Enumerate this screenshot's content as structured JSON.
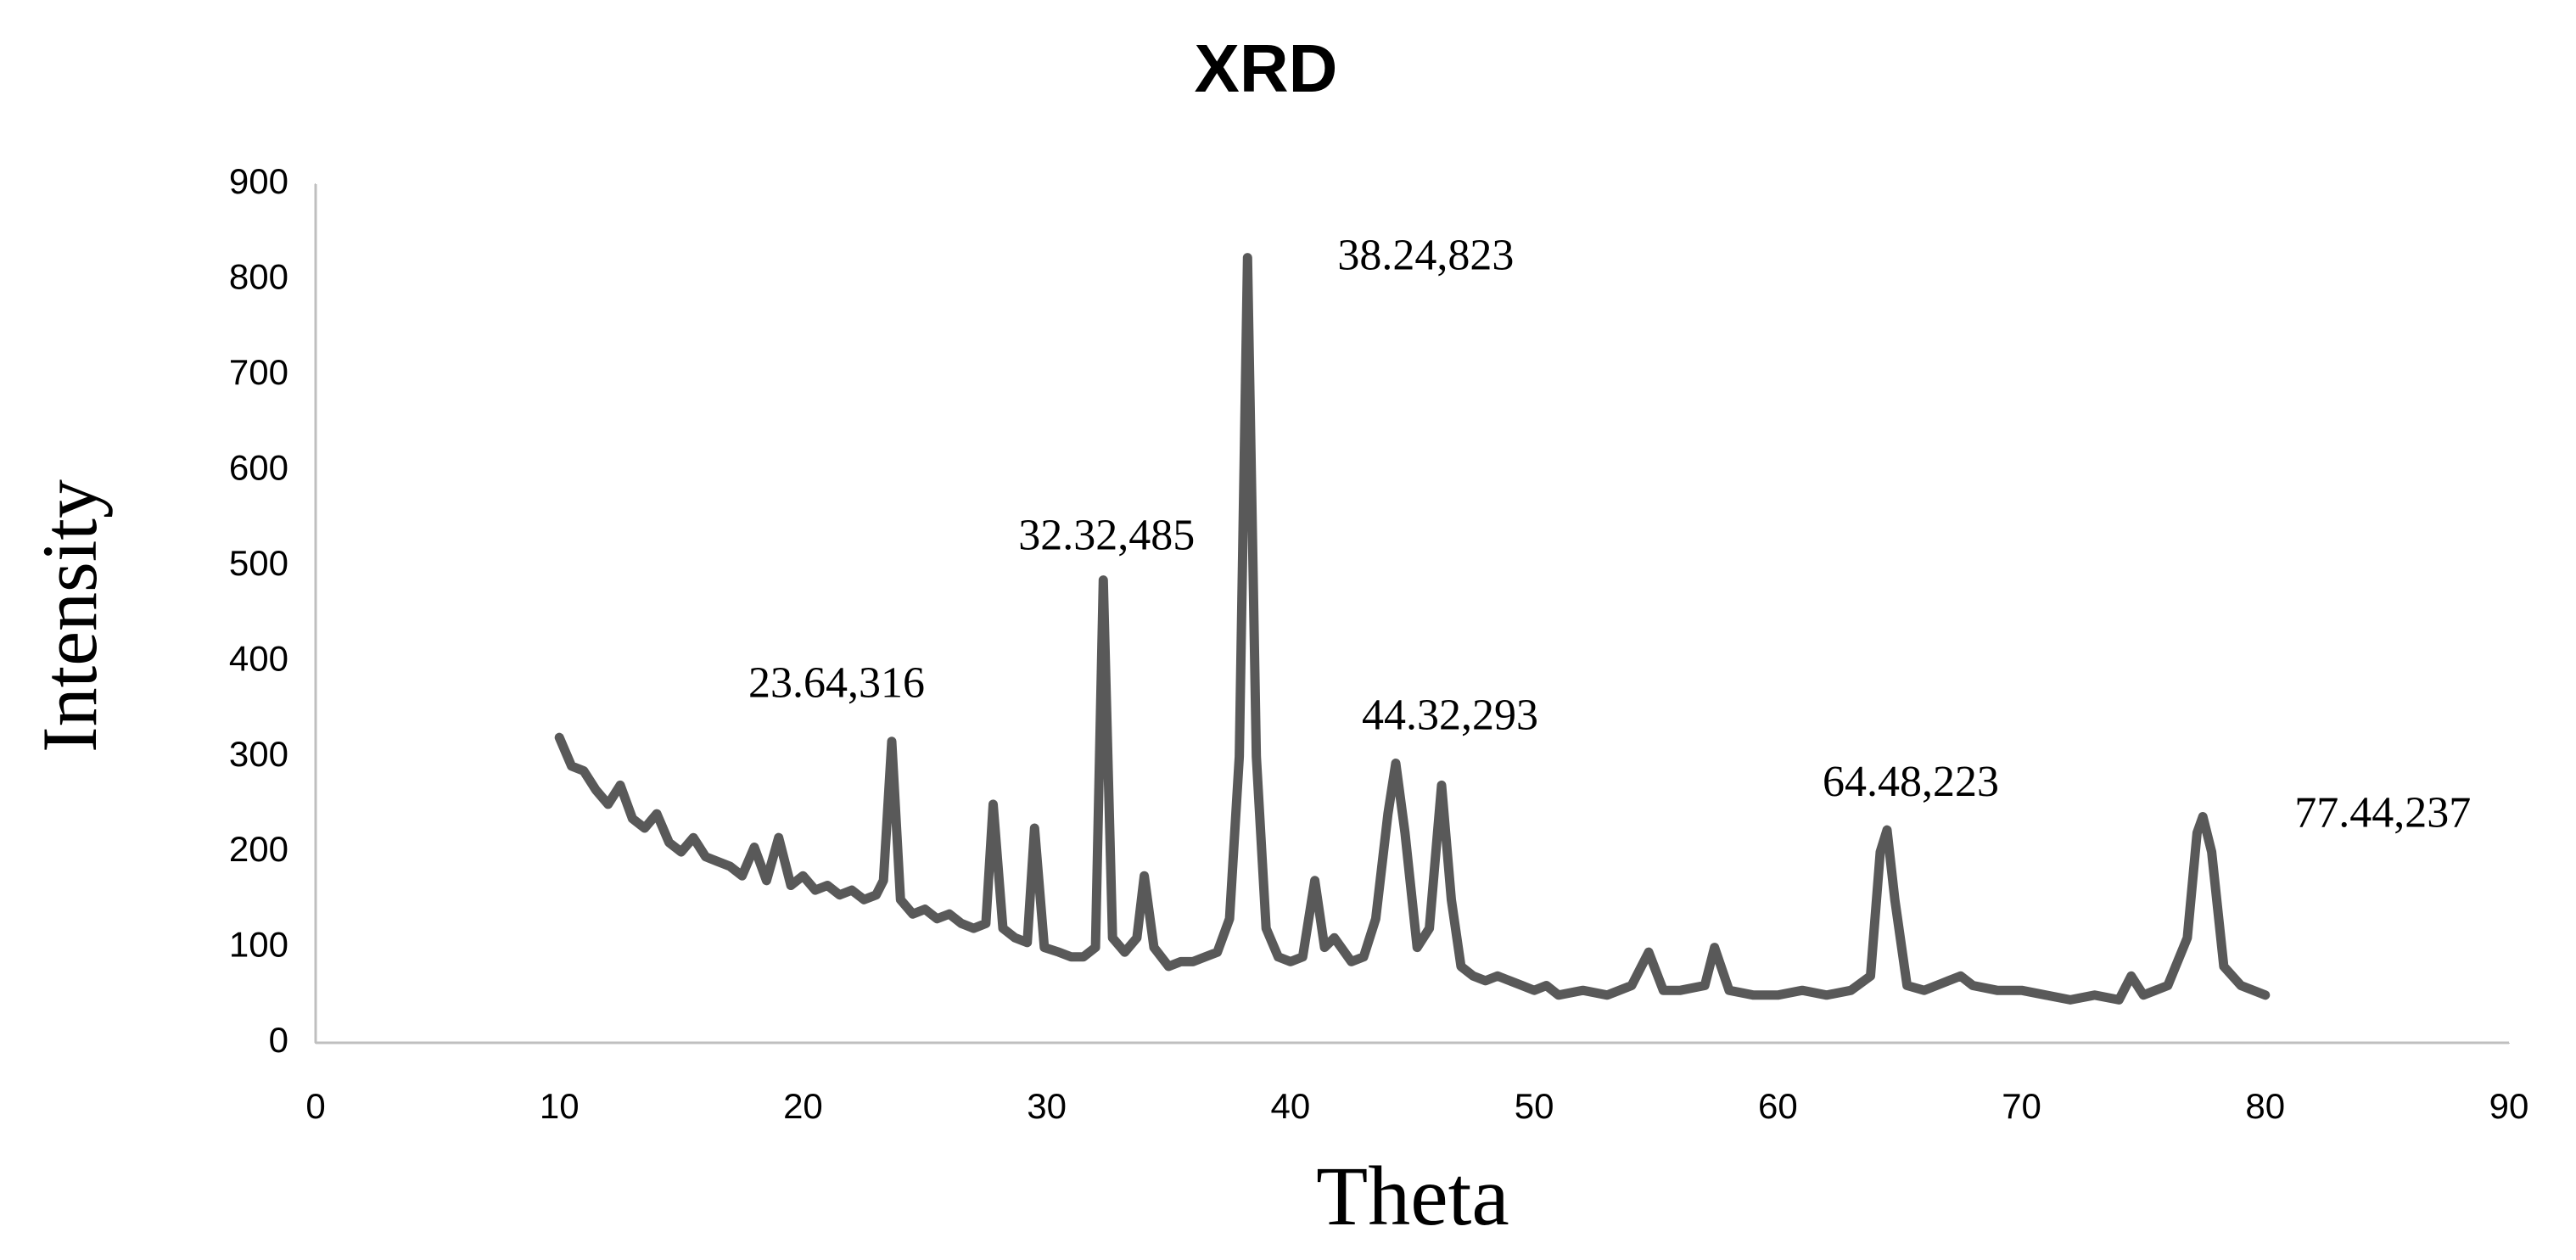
{
  "chart_data": {
    "type": "line",
    "title": "XRD",
    "xlabel": "Theta",
    "ylabel": "Intensity",
    "color": "#595959",
    "grid": false,
    "xlim": [
      0,
      90
    ],
    "xticks": [
      0,
      10,
      20,
      30,
      40,
      50,
      60,
      70,
      80,
      90
    ],
    "ylim": [
      0,
      900
    ],
    "yticks": [
      0,
      100,
      200,
      300,
      400,
      500,
      600,
      700,
      800,
      900
    ],
    "x": [
      10,
      10.5,
      11,
      11.5,
      12,
      12.5,
      13,
      13.5,
      14,
      14.5,
      15,
      15.5,
      16,
      16.5,
      17,
      17.5,
      18,
      18.5,
      19,
      19.5,
      20,
      20.5,
      21,
      21.5,
      22,
      22.5,
      23,
      23.3,
      23.64,
      24,
      24.5,
      25,
      25.5,
      26,
      26.5,
      27,
      27.5,
      27.8,
      28.2,
      28.7,
      29.2,
      29.5,
      29.9,
      30.5,
      31,
      31.5,
      32,
      32.32,
      32.7,
      33.2,
      33.7,
      34,
      34.4,
      35,
      35.5,
      36,
      36.5,
      37,
      37.5,
      37.9,
      38.24,
      38.6,
      39,
      39.5,
      40,
      40.5,
      41,
      41.4,
      41.8,
      42.5,
      43,
      43.5,
      44,
      44.32,
      44.7,
      45.2,
      45.7,
      46.2,
      46.6,
      47,
      47.5,
      48,
      48.5,
      49,
      49.5,
      50,
      50.5,
      51,
      52,
      53,
      54,
      54.7,
      55.3,
      56,
      57,
      57.4,
      58,
      59,
      60,
      61,
      62,
      63,
      63.8,
      64.2,
      64.48,
      64.8,
      65.3,
      66,
      67,
      67.5,
      68,
      69,
      70,
      71,
      72,
      73,
      74,
      74.5,
      75,
      76,
      76.8,
      77.2,
      77.44,
      77.8,
      78.3,
      79,
      80
    ],
    "values": [
      320,
      290,
      285,
      265,
      250,
      270,
      235,
      225,
      240,
      210,
      200,
      215,
      195,
      190,
      185,
      175,
      205,
      170,
      215,
      165,
      175,
      160,
      165,
      155,
      160,
      150,
      155,
      170,
      316,
      150,
      135,
      140,
      130,
      135,
      125,
      120,
      125,
      250,
      120,
      110,
      105,
      225,
      100,
      95,
      90,
      90,
      100,
      485,
      110,
      95,
      110,
      175,
      100,
      80,
      85,
      85,
      90,
      95,
      130,
      300,
      823,
      300,
      120,
      90,
      85,
      90,
      170,
      100,
      110,
      85,
      90,
      130,
      240,
      293,
      220,
      100,
      120,
      270,
      150,
      80,
      70,
      65,
      70,
      65,
      60,
      55,
      60,
      50,
      55,
      50,
      60,
      95,
      55,
      55,
      60,
      100,
      55,
      50,
      50,
      55,
      50,
      55,
      70,
      200,
      223,
      150,
      60,
      55,
      65,
      70,
      60,
      55,
      55,
      50,
      45,
      50,
      45,
      70,
      50,
      60,
      110,
      220,
      237,
      200,
      80,
      60,
      50
    ],
    "annotations": [
      {
        "x": 23.64,
        "y": 316,
        "label": "23.64,316"
      },
      {
        "x": 32.32,
        "y": 485,
        "label": "32.32,485"
      },
      {
        "x": 38.24,
        "y": 823,
        "label": "38.24,823"
      },
      {
        "x": 44.32,
        "y": 293,
        "label": "44.32,293"
      },
      {
        "x": 64.48,
        "y": 223,
        "label": "64.48,223"
      },
      {
        "x": 77.44,
        "y": 237,
        "label": "77.44,237"
      }
    ]
  }
}
